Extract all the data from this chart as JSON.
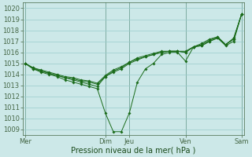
{
  "xlabel": "Pression niveau de la mer( hPa )",
  "background_color": "#cce8e8",
  "grid_color": "#99cccc",
  "line_color": "#1a6b1a",
  "ylim": [
    1008.5,
    1020.5
  ],
  "yticks": [
    1009,
    1010,
    1011,
    1012,
    1013,
    1014,
    1015,
    1016,
    1017,
    1018,
    1019,
    1020
  ],
  "day_labels": [
    "Mer",
    "Dim",
    "Jeu",
    "Ven",
    "Sam"
  ],
  "day_positions": [
    0,
    10,
    13,
    20,
    27
  ],
  "num_points": 28,
  "series": [
    [
      1015.0,
      1014.5,
      1014.2,
      1014.0,
      1013.8,
      1013.5,
      1013.3,
      1013.1,
      1012.9,
      1012.7,
      1010.5,
      1008.8,
      1008.8,
      1010.5,
      1013.3,
      1014.5,
      1015.0,
      1015.8,
      1016.0,
      1016.0,
      1015.2,
      1016.5,
      1016.6,
      1017.0,
      1017.3,
      1016.6,
      1017.0,
      1019.5
    ],
    [
      1015.0,
      1014.5,
      1014.3,
      1014.1,
      1013.9,
      1013.7,
      1013.5,
      1013.3,
      1013.1,
      1012.9,
      1013.8,
      1014.2,
      1014.5,
      1015.0,
      1015.3,
      1015.6,
      1015.8,
      1016.0,
      1016.1,
      1016.1,
      1016.0,
      1016.5,
      1016.6,
      1017.0,
      1017.3,
      1016.7,
      1017.2,
      1019.5
    ],
    [
      1015.0,
      1014.6,
      1014.3,
      1014.1,
      1013.9,
      1013.7,
      1013.6,
      1013.4,
      1013.3,
      1013.1,
      1013.8,
      1014.3,
      1014.6,
      1015.1,
      1015.4,
      1015.6,
      1015.8,
      1016.0,
      1016.1,
      1016.1,
      1016.0,
      1016.5,
      1016.7,
      1017.1,
      1017.4,
      1016.7,
      1017.2,
      1019.5
    ],
    [
      1015.0,
      1014.6,
      1014.4,
      1014.2,
      1014.0,
      1013.8,
      1013.7,
      1013.5,
      1013.4,
      1013.2,
      1013.9,
      1014.4,
      1014.7,
      1015.1,
      1015.5,
      1015.7,
      1015.9,
      1016.1,
      1016.1,
      1016.1,
      1016.1,
      1016.5,
      1016.8,
      1017.2,
      1017.4,
      1016.7,
      1017.3,
      1019.5
    ]
  ],
  "vline_color": "#446644",
  "xlabel_fontsize": 7,
  "tick_fontsize": 6
}
